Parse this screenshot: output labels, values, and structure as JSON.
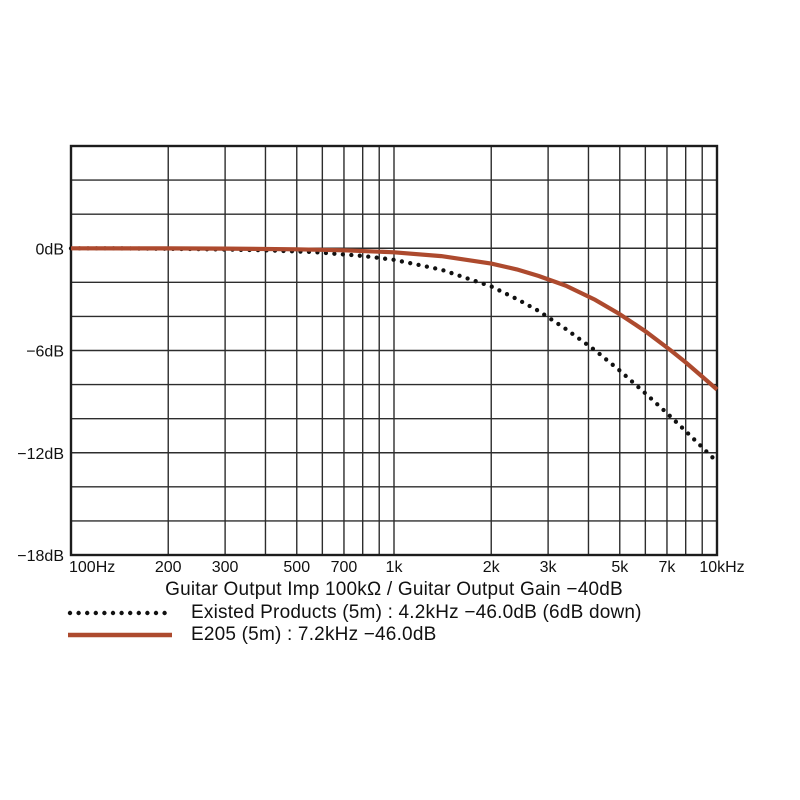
{
  "figure": {
    "background": "#ffffff",
    "grid_color": "#2d2d2d",
    "border_color": "#1c1c1c",
    "text_color": "#111111"
  },
  "chart_data": {
    "type": "line",
    "title": "Guitar Output Imp 100kΩ / Guitar Output Gain −40dB",
    "x_axis": {
      "scale": "log",
      "unit": "Hz",
      "range": [
        100,
        10000
      ],
      "gridlines": [
        100,
        200,
        300,
        400,
        500,
        600,
        700,
        800,
        900,
        1000,
        2000,
        3000,
        4000,
        5000,
        6000,
        7000,
        8000,
        9000,
        10000
      ],
      "ticks": [
        {
          "f": 100,
          "label": "100Hz",
          "anchor": "start",
          "dx": -2
        },
        {
          "f": 200,
          "label": "200"
        },
        {
          "f": 300,
          "label": "300"
        },
        {
          "f": 500,
          "label": "500"
        },
        {
          "f": 700,
          "label": "700"
        },
        {
          "f": 1000,
          "label": "1k"
        },
        {
          "f": 2000,
          "label": "2k"
        },
        {
          "f": 3000,
          "label": "3k"
        },
        {
          "f": 5000,
          "label": "5k"
        },
        {
          "f": 7000,
          "label": "7k"
        },
        {
          "f": 10000,
          "label": "10kHz",
          "dx": 5
        }
      ]
    },
    "y_axis": {
      "unit": "dB",
      "range": [
        -18,
        6
      ],
      "gridline_step": 2,
      "ticks": [
        {
          "db": 0,
          "label": "0dB"
        },
        {
          "db": -6,
          "label": "−6dB"
        },
        {
          "db": -12,
          "label": "−12dB"
        },
        {
          "db": -18,
          "label": "−18dB"
        }
      ]
    },
    "series": [
      {
        "name": "Existed Products (5m)",
        "style": "dotted",
        "color": "#111111",
        "points": [
          [
            100,
            -0.01
          ],
          [
            140,
            -0.01
          ],
          [
            200,
            -0.03
          ],
          [
            280,
            -0.06
          ],
          [
            400,
            -0.12
          ],
          [
            560,
            -0.22
          ],
          [
            800,
            -0.45
          ],
          [
            1000,
            -0.68
          ],
          [
            1400,
            -1.25
          ],
          [
            2000,
            -2.24
          ],
          [
            2400,
            -2.98
          ],
          [
            2800,
            -3.67
          ],
          [
            3400,
            -4.73
          ],
          [
            4200,
            -6.0
          ],
          [
            5000,
            -7.18
          ],
          [
            6000,
            -8.51
          ],
          [
            7000,
            -9.68
          ],
          [
            8000,
            -10.73
          ],
          [
            9000,
            -11.68
          ],
          [
            10000,
            -12.53
          ]
        ]
      },
      {
        "name": "E205 (5m)",
        "style": "solid",
        "color": "#ad4a2e",
        "points": [
          [
            100,
            0.0
          ],
          [
            200,
            -0.01
          ],
          [
            300,
            -0.02
          ],
          [
            500,
            -0.06
          ],
          [
            700,
            -0.12
          ],
          [
            1000,
            -0.24
          ],
          [
            1400,
            -0.46
          ],
          [
            2000,
            -0.9
          ],
          [
            2400,
            -1.24
          ],
          [
            2800,
            -1.62
          ],
          [
            3400,
            -2.19
          ],
          [
            4200,
            -3.03
          ],
          [
            5000,
            -3.87
          ],
          [
            6000,
            -4.87
          ],
          [
            7200,
            -6.0
          ],
          [
            8000,
            -6.7
          ],
          [
            9000,
            -7.53
          ],
          [
            10000,
            -8.29
          ]
        ]
      }
    ],
    "legend": [
      {
        "label": "Existed Products (5m) : 4.2kHz −46.0dB (6dB down)"
      },
      {
        "label": "E205 (5m) : 7.2kHz −46.0dB"
      }
    ]
  }
}
